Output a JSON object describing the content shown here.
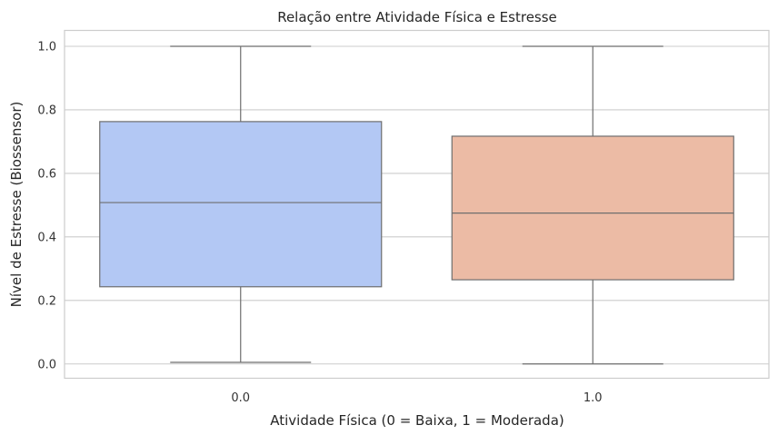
{
  "chart_data": {
    "type": "box",
    "title": "Relação entre Atividade Física e Estresse",
    "xlabel": "Atividade Física (0 = Baixa, 1 = Moderada)",
    "ylabel": "Nível de Estresse (Biossensor)",
    "ylim": [
      -0.045,
      1.05
    ],
    "yticks": [
      "0.0",
      "0.2",
      "0.4",
      "0.6",
      "0.8",
      "1.0"
    ],
    "categories": [
      "0.0",
      "1.0"
    ],
    "boxes": [
      {
        "category": "0.0",
        "min": 0.005,
        "q1": 0.243,
        "median": 0.508,
        "q3": 0.763,
        "max": 1.0,
        "color": "#b3c8f4"
      },
      {
        "category": "1.0",
        "min": 0.0,
        "q1": 0.265,
        "median": 0.475,
        "q3": 0.717,
        "max": 1.0,
        "color": "#ecbba5"
      }
    ],
    "grid": true,
    "grid_color": "#cccccc",
    "line_color": "#6e6e6e"
  }
}
